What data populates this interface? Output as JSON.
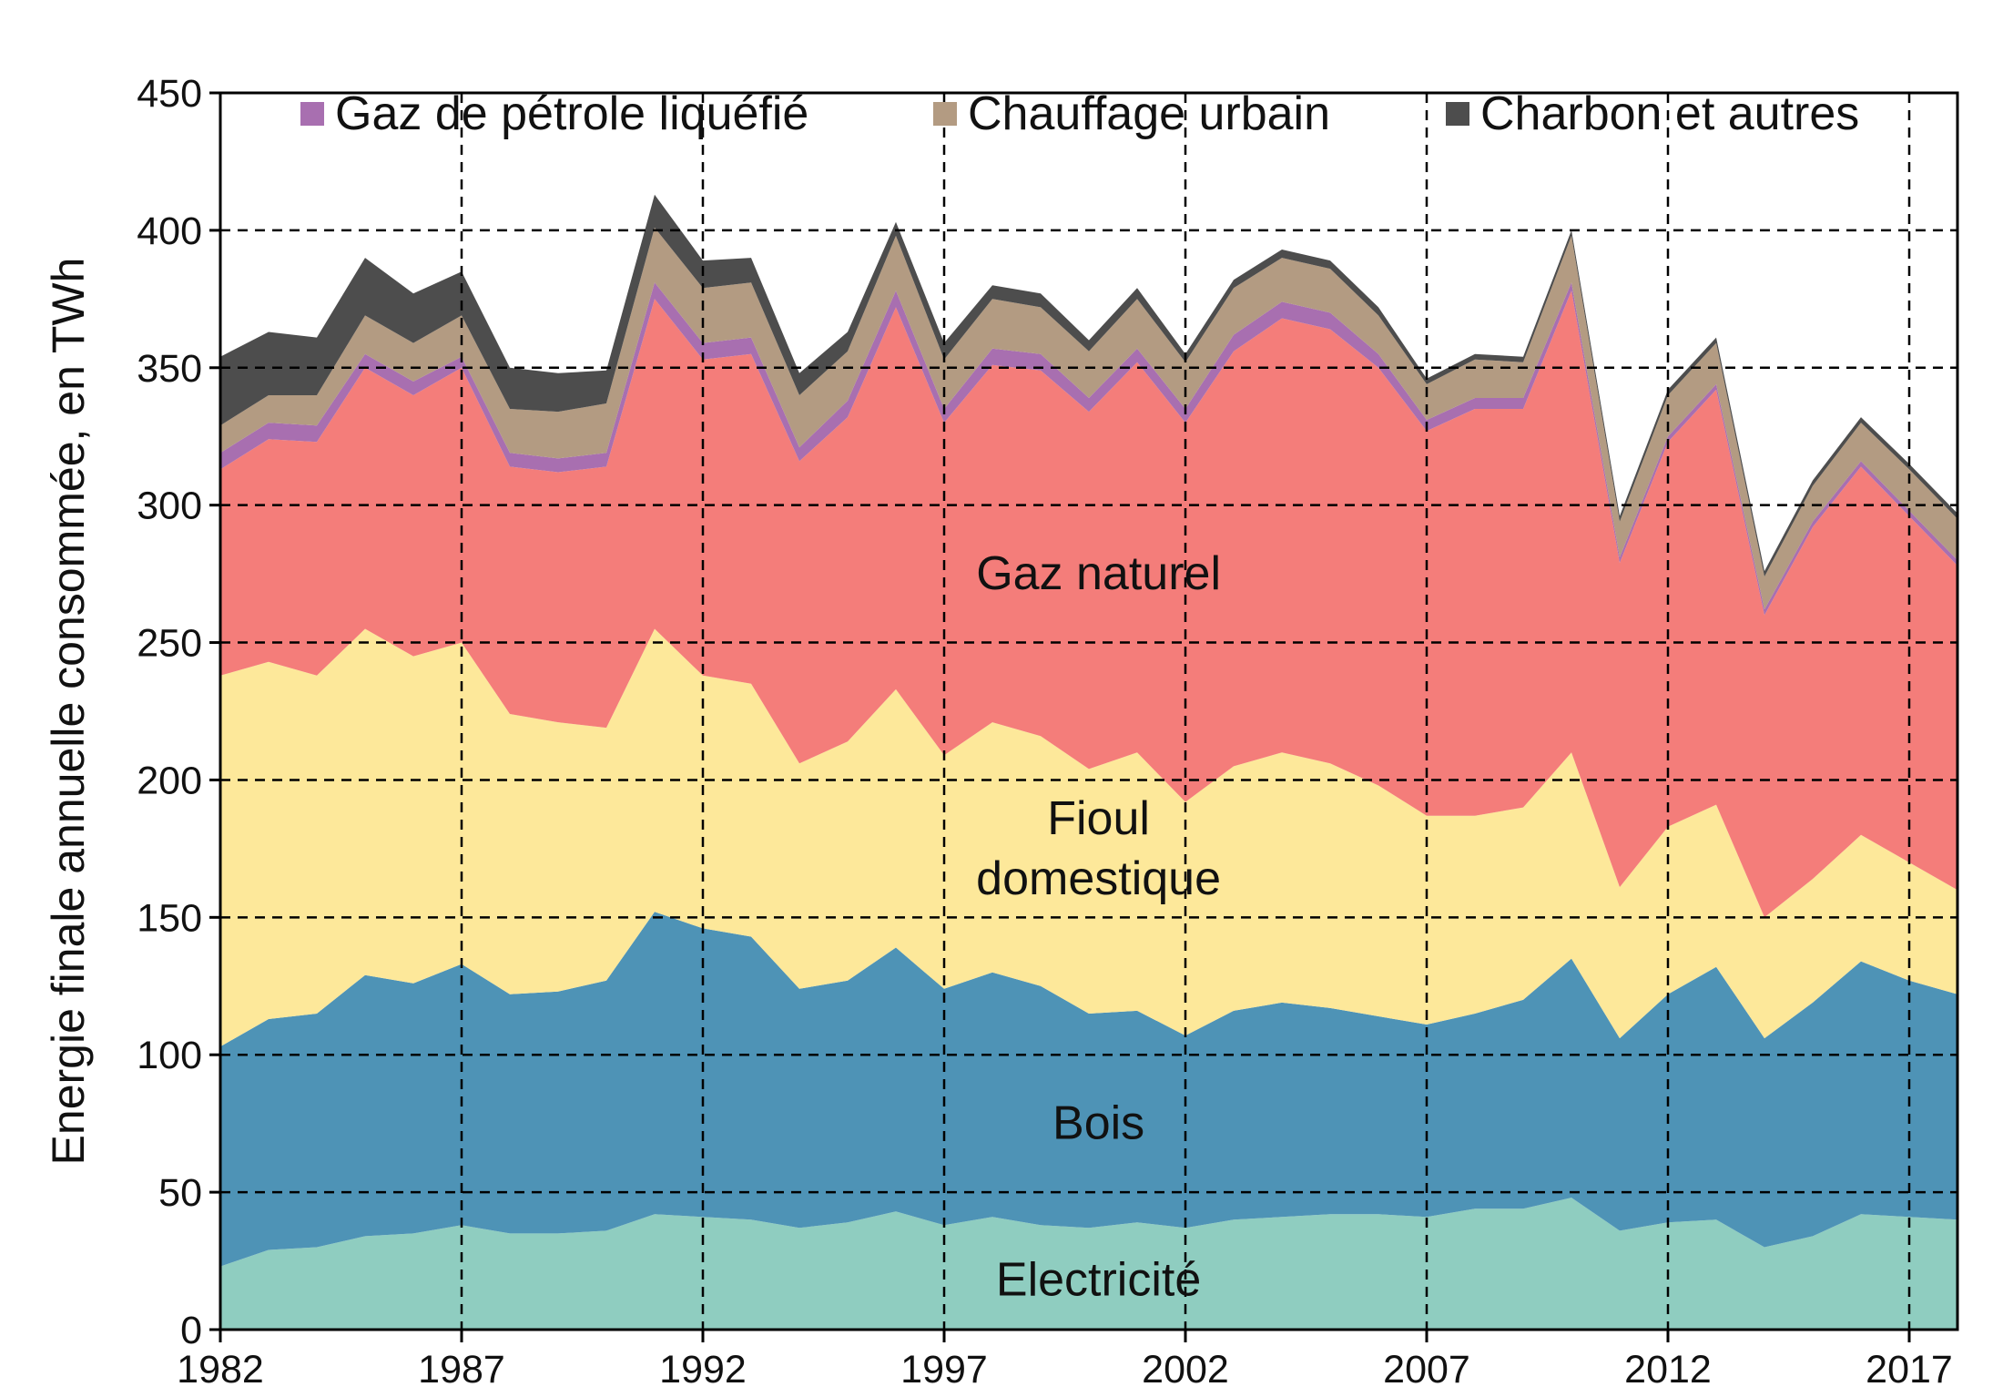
{
  "chart_data": {
    "type": "area",
    "stacked": true,
    "title": "",
    "xlabel": "",
    "ylabel": "Energie finale annuelle consommée, en TWh",
    "ylim": [
      0,
      450
    ],
    "xlim": [
      1982,
      2018
    ],
    "yticks": [
      0,
      50,
      100,
      150,
      200,
      250,
      300,
      350,
      400,
      450
    ],
    "xticks": [
      1982,
      1987,
      1992,
      1997,
      2002,
      2007,
      2012,
      2017
    ],
    "grid": "dashed",
    "legend_position": "top",
    "x": [
      1982,
      1983,
      1984,
      1985,
      1986,
      1987,
      1988,
      1989,
      1990,
      1991,
      1992,
      1993,
      1994,
      1995,
      1996,
      1997,
      1998,
      1999,
      2000,
      2001,
      2002,
      2003,
      2004,
      2005,
      2006,
      2007,
      2008,
      2009,
      2010,
      2011,
      2012,
      2013,
      2014,
      2015,
      2016,
      2017,
      2018
    ],
    "series": [
      {
        "name": "Electricité",
        "color": "#8fcdc0",
        "in_legend": false,
        "label_x": 2000.2,
        "label_y": 18,
        "values": [
          23,
          29,
          30,
          34,
          35,
          38,
          35,
          35,
          36,
          42,
          41,
          40,
          37,
          39,
          43,
          38,
          41,
          38,
          37,
          39,
          37,
          40,
          41,
          42,
          42,
          41,
          44,
          44,
          48,
          36,
          39,
          40,
          30,
          34,
          42,
          41,
          40
        ]
      },
      {
        "name": "Bois",
        "color": "#4e93b6",
        "in_legend": false,
        "label_x": 2000.2,
        "label_y": 75,
        "values": [
          80,
          84,
          85,
          95,
          91,
          95,
          87,
          88,
          91,
          110,
          105,
          103,
          87,
          88,
          96,
          86,
          89,
          87,
          78,
          77,
          70,
          76,
          78,
          75,
          72,
          70,
          71,
          76,
          87,
          70,
          83,
          92,
          76,
          85,
          92,
          86,
          82
        ]
      },
      {
        "name": "Fioul domestique",
        "lines": [
          "Fioul",
          "domestique"
        ],
        "color": "#fde89a",
        "in_legend": false,
        "label_x": 2000.2,
        "label_y": 175,
        "values": [
          135,
          130,
          123,
          126,
          119,
          117,
          102,
          98,
          92,
          103,
          92,
          92,
          82,
          87,
          94,
          85,
          91,
          91,
          89,
          94,
          85,
          89,
          91,
          89,
          84,
          76,
          72,
          70,
          75,
          55,
          61,
          59,
          44,
          45,
          46,
          43,
          38
        ]
      },
      {
        "name": "Gaz naturel",
        "color": "#f47d7a",
        "in_legend": false,
        "label_x": 2000.2,
        "label_y": 275,
        "values": [
          75,
          81,
          85,
          95,
          95,
          100,
          90,
          91,
          95,
          120,
          115,
          120,
          110,
          118,
          139,
          121,
          130,
          133,
          130,
          142,
          138,
          151,
          158,
          158,
          152,
          140,
          148,
          145,
          168,
          118,
          140,
          151,
          110,
          128,
          134,
          126,
          118
        ]
      },
      {
        "name": "Gaz de pétrole liquéfié",
        "color": "#a86fb0",
        "in_legend": true,
        "values": [
          6,
          6,
          6,
          5,
          5,
          4,
          5,
          5,
          5,
          6,
          6,
          6,
          5,
          6,
          6,
          5,
          6,
          6,
          5,
          5,
          5,
          6,
          6,
          6,
          5,
          4,
          4,
          4,
          3,
          2,
          2,
          2,
          2,
          2,
          2,
          2,
          2
        ]
      },
      {
        "name": "Chauffage urbain",
        "color": "#b39b82",
        "in_legend": true,
        "values": [
          10,
          10,
          11,
          14,
          14,
          15,
          16,
          17,
          18,
          20,
          20,
          20,
          19,
          18,
          20,
          18,
          18,
          17,
          17,
          18,
          17,
          17,
          16,
          16,
          14,
          13,
          14,
          13,
          17,
          13,
          15,
          15,
          12,
          13,
          14,
          15,
          15
        ]
      },
      {
        "name": "Charbon et autres",
        "color": "#4d4d4d",
        "in_legend": true,
        "values": [
          25,
          23,
          21,
          21,
          18,
          16,
          15,
          14,
          12,
          12,
          10,
          9,
          8,
          7,
          5,
          6,
          5,
          5,
          4,
          4,
          3,
          3,
          3,
          3,
          3,
          2,
          2,
          2,
          2,
          2,
          2,
          2,
          2,
          2,
          2,
          2,
          2
        ]
      }
    ]
  }
}
